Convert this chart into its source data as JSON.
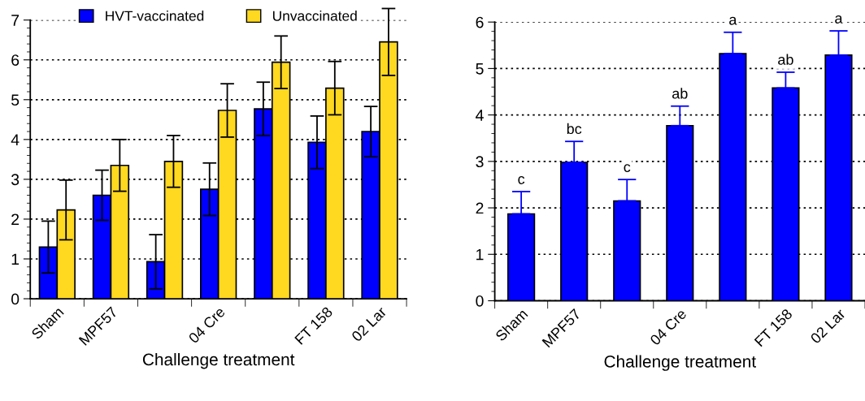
{
  "chart_data": [
    {
      "type": "bar",
      "xlabel": "Challenge treatment",
      "categories": [
        "Sham",
        "MPF57",
        null,
        "04 Cre",
        null,
        "FT 158",
        "02 Lar"
      ],
      "ylim": [
        0,
        7
      ],
      "yticks": [
        0,
        1,
        2,
        3,
        4,
        5,
        6,
        7
      ],
      "grid": "y",
      "legend": "top",
      "series": [
        {
          "name": "HVT-vaccinated",
          "color": "#0000ff",
          "values": [
            1.3,
            2.6,
            0.93,
            2.75,
            4.77,
            3.93,
            4.2
          ],
          "errors": [
            0.65,
            0.63,
            0.68,
            0.66,
            0.67,
            0.66,
            0.63
          ]
        },
        {
          "name": "Unvaccinated",
          "color": "#ffd820",
          "values": [
            2.23,
            3.35,
            3.45,
            4.73,
            5.94,
            5.29,
            6.45
          ],
          "errors": [
            0.75,
            0.65,
            0.65,
            0.67,
            0.66,
            0.67,
            0.84
          ]
        }
      ]
    },
    {
      "type": "bar",
      "xlabel": "Challenge treatment",
      "categories": [
        "Sham",
        "MPF57",
        null,
        "04 Cre",
        null,
        "FT 158",
        "02 Lar"
      ],
      "ylim": [
        0,
        6
      ],
      "yticks": [
        0,
        1,
        2,
        3,
        4,
        5,
        6
      ],
      "grid": "y",
      "series": [
        {
          "color": "#0000ff",
          "values": [
            1.87,
            2.98,
            2.15,
            3.77,
            5.32,
            4.58,
            5.29
          ],
          "errors": [
            [
              1.87,
              2.35
            ],
            [
              2.98,
              3.43
            ],
            [
              2.15,
              2.61
            ],
            [
              3.77,
              4.19
            ],
            [
              5.32,
              5.78
            ],
            [
              4.58,
              4.92
            ],
            [
              5.29,
              5.81
            ]
          ]
        }
      ],
      "annotations": [
        "c",
        "bc",
        "c",
        "ab",
        "a",
        "ab",
        "a"
      ]
    }
  ]
}
